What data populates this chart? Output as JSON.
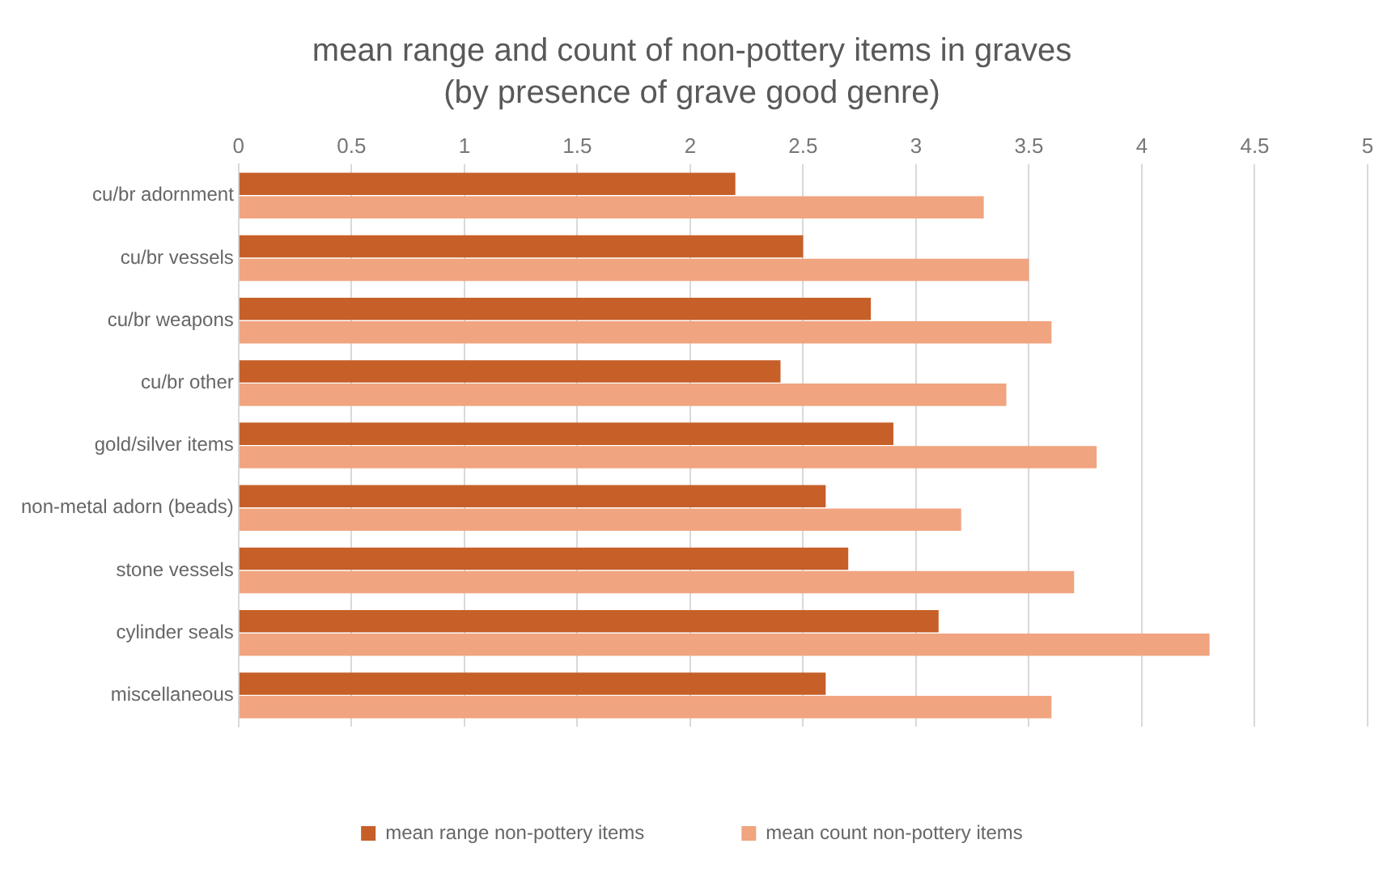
{
  "chart_data": {
    "type": "bar",
    "orientation": "horizontal",
    "title": "mean range and count of non-pottery items in graves",
    "subtitle": "(by presence of grave good genre)",
    "categories": [
      "cu/br adornment",
      "cu/br vessels",
      "cu/br weapons",
      "cu/br other",
      "gold/silver items",
      "non-metal adorn (beads)",
      "stone vessels",
      "cylinder seals",
      "miscellaneous"
    ],
    "series": [
      {
        "name": "mean range non-pottery items",
        "color": "#c65f28",
        "values": [
          2.2,
          2.5,
          2.8,
          2.4,
          2.9,
          2.6,
          2.7,
          3.1,
          2.6
        ]
      },
      {
        "name": "mean count non-pottery items",
        "color": "#f0a47f",
        "values": [
          3.3,
          3.5,
          3.6,
          3.4,
          3.8,
          3.2,
          3.7,
          4.3,
          3.6
        ]
      }
    ],
    "xlim": [
      0,
      5
    ],
    "xticks": [
      0,
      0.5,
      1,
      1.5,
      2,
      2.5,
      3,
      3.5,
      4,
      4.5,
      5
    ],
    "grid": "x",
    "legend": "bottom"
  }
}
